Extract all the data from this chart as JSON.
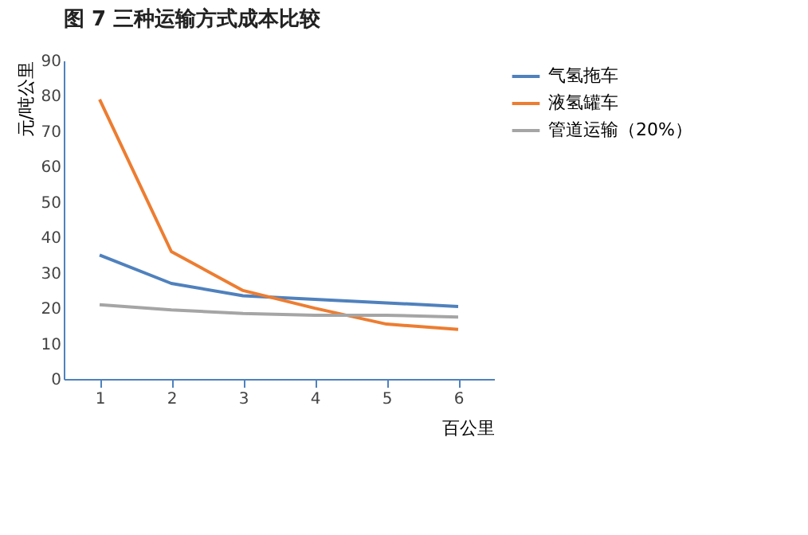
{
  "chart_data": {
    "type": "line",
    "title": "图 7 三种运输方式成本比较",
    "xlabel": "百公里",
    "ylabel": "元/吨公里",
    "categories": [
      "1",
      "2",
      "3",
      "4",
      "5",
      "6"
    ],
    "series": [
      {
        "name": "气氢拖车",
        "color": "#4f81bd",
        "values": [
          35,
          27,
          23.5,
          22.5,
          21.5,
          20.5
        ]
      },
      {
        "name": "液氢罐车",
        "color": "#ed7d31",
        "values": [
          79,
          36,
          25,
          20,
          15.5,
          14
        ]
      },
      {
        "name": "管道运输（20%）",
        "color": "#a5a5a5",
        "values": [
          21,
          19.5,
          18.5,
          18,
          18,
          17.5
        ]
      }
    ],
    "ylim": [
      0,
      90
    ],
    "yticks": [
      0,
      10,
      20,
      30,
      40,
      50,
      60,
      70,
      80,
      90
    ],
    "grid": false,
    "legend": "right",
    "marker": "none",
    "line_style": "solid"
  }
}
